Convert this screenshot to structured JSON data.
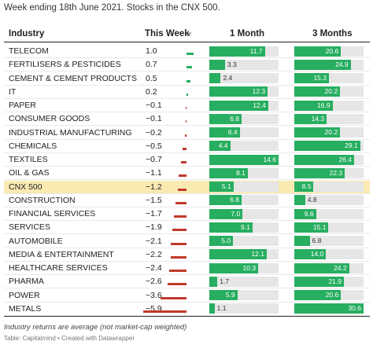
{
  "title": "Week ending 18th June 2021. Stocks in the CNX 500.",
  "columns": {
    "industry": "Industry",
    "this_week": "This Week",
    "sort_icon": "▼",
    "one_month": "1 Month",
    "three_months": "3 Months"
  },
  "colors": {
    "positive": "#27ae60",
    "negative": "#c0392b",
    "bar_bg": "#e6e6e6",
    "highlight": "#faeab2"
  },
  "chart_data": {
    "type": "table",
    "rows": [
      {
        "industry": "TELECOM",
        "this_week": 1.0,
        "this_week_label": "1.0",
        "one_month": 11.7,
        "three_months": 20.6
      },
      {
        "industry": "FERTILISERS & PESTICIDES",
        "this_week": 0.7,
        "this_week_label": "0.7",
        "one_month": 3.3,
        "three_months": 24.9
      },
      {
        "industry": "CEMENT & CEMENT PRODUCTS",
        "this_week": 0.5,
        "this_week_label": "0.5",
        "one_month": 2.4,
        "three_months": 15.3
      },
      {
        "industry": "IT",
        "this_week": 0.2,
        "this_week_label": "0.2",
        "one_month": 12.3,
        "three_months": 20.2
      },
      {
        "industry": "PAPER",
        "this_week": -0.1,
        "this_week_label": "−0.1",
        "one_month": 12.4,
        "three_months": 16.9
      },
      {
        "industry": "CONSUMER GOODS",
        "this_week": -0.1,
        "this_week_label": "−0.1",
        "one_month": 6.8,
        "three_months": 14.3
      },
      {
        "industry": "INDUSTRIAL MANUFACTURING",
        "this_week": -0.2,
        "this_week_label": "−0.2",
        "one_month": 6.4,
        "three_months": 20.2
      },
      {
        "industry": "CHEMICALS",
        "this_week": -0.5,
        "this_week_label": "−0.5",
        "one_month": 4.4,
        "three_months": 29.1
      },
      {
        "industry": "TEXTILES",
        "this_week": -0.7,
        "this_week_label": "−0.7",
        "one_month": 14.6,
        "three_months": 26.4
      },
      {
        "industry": "OIL & GAS",
        "this_week": -1.1,
        "this_week_label": "−1.1",
        "one_month": 8.1,
        "three_months": 22.3
      },
      {
        "industry": "CNX 500",
        "this_week": -1.2,
        "this_week_label": "−1.2",
        "one_month": 5.1,
        "three_months": 8.5,
        "highlight": true
      },
      {
        "industry": "CONSTRUCTION",
        "this_week": -1.5,
        "this_week_label": "−1.5",
        "one_month": 6.8,
        "three_months": 4.8
      },
      {
        "industry": "FINANCIAL SERVICES",
        "this_week": -1.7,
        "this_week_label": "−1.7",
        "one_month": 7.0,
        "three_months": 9.6
      },
      {
        "industry": "SERVICES",
        "this_week": -1.9,
        "this_week_label": "−1.9",
        "one_month": 9.1,
        "three_months": 15.1
      },
      {
        "industry": "AUTOMOBILE",
        "this_week": -2.1,
        "this_week_label": "−2.1",
        "one_month": 5.0,
        "three_months": 6.8
      },
      {
        "industry": "MEDIA & ENTERTAINMENT",
        "this_week": -2.2,
        "this_week_label": "−2.2",
        "one_month": 12.1,
        "three_months": 14.0
      },
      {
        "industry": "HEALTHCARE SERVICES",
        "this_week": -2.4,
        "this_week_label": "−2.4",
        "one_month": 10.3,
        "three_months": 24.2
      },
      {
        "industry": "PHARMA",
        "this_week": -2.6,
        "this_week_label": "−2.6",
        "one_month": 1.7,
        "three_months": 21.9
      },
      {
        "industry": "POWER",
        "this_week": -3.6,
        "this_week_label": "−3.6",
        "one_month": 5.9,
        "three_months": 20.6
      },
      {
        "industry": "METALS",
        "this_week": -5.9,
        "this_week_label": "−5.9",
        "one_month": 1.1,
        "three_months": 30.6
      }
    ],
    "one_month_max": 14.6,
    "three_months_max": 30.6,
    "this_week_max_abs": 5.9
  },
  "footnote": "Industry returns are average (not market-cap weighted)",
  "source": "Table: Capitalmind • Created with Datawrapper"
}
